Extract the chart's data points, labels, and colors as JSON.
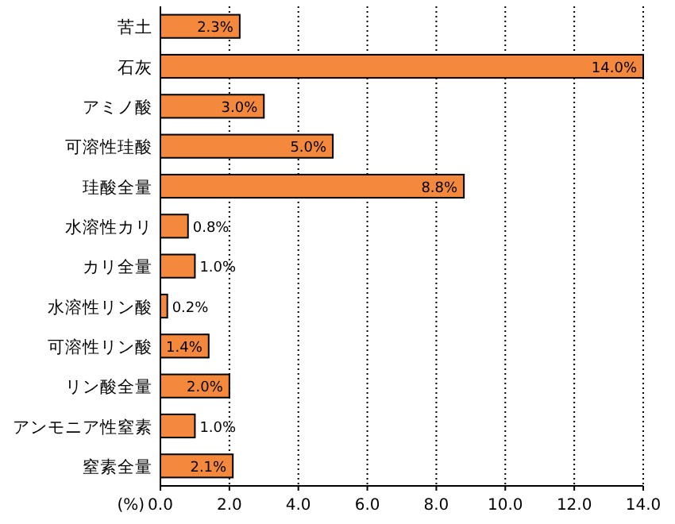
{
  "chart_data": {
    "type": "bar",
    "orientation": "horizontal",
    "xlabel": "(%)",
    "categories": [
      "苦土",
      "石灰",
      "アミノ酸",
      "可溶性珪酸",
      "珪酸全量",
      "水溶性カリ",
      "カリ全量",
      "水溶性リン酸",
      "可溶性リン酸",
      "リン酸全量",
      "アンモニア性窒素",
      "窒素全量"
    ],
    "values": [
      2.3,
      14.0,
      3.0,
      5.0,
      8.8,
      0.8,
      1.0,
      0.2,
      1.4,
      2.0,
      1.0,
      2.1
    ],
    "value_labels": [
      "2.3%",
      "14.0%",
      "3.0%",
      "5.0%",
      "8.8%",
      "0.8%",
      "1.0%",
      "0.2%",
      "1.4%",
      "2.0%",
      "1.0%",
      "2.1%"
    ],
    "color": "#f4883c",
    "xlim": [
      0,
      14
    ],
    "xticks": [
      {
        "value": 0,
        "label": "0.0"
      },
      {
        "value": 2,
        "label": "2.0"
      },
      {
        "value": 4,
        "label": "4.0"
      },
      {
        "value": 6,
        "label": "6.0"
      },
      {
        "value": 8,
        "label": "8.0"
      },
      {
        "value": 10,
        "label": "10.0"
      },
      {
        "value": 12,
        "label": "12.0"
      },
      {
        "value": 14,
        "label": "14.0"
      }
    ],
    "grid": "x"
  }
}
